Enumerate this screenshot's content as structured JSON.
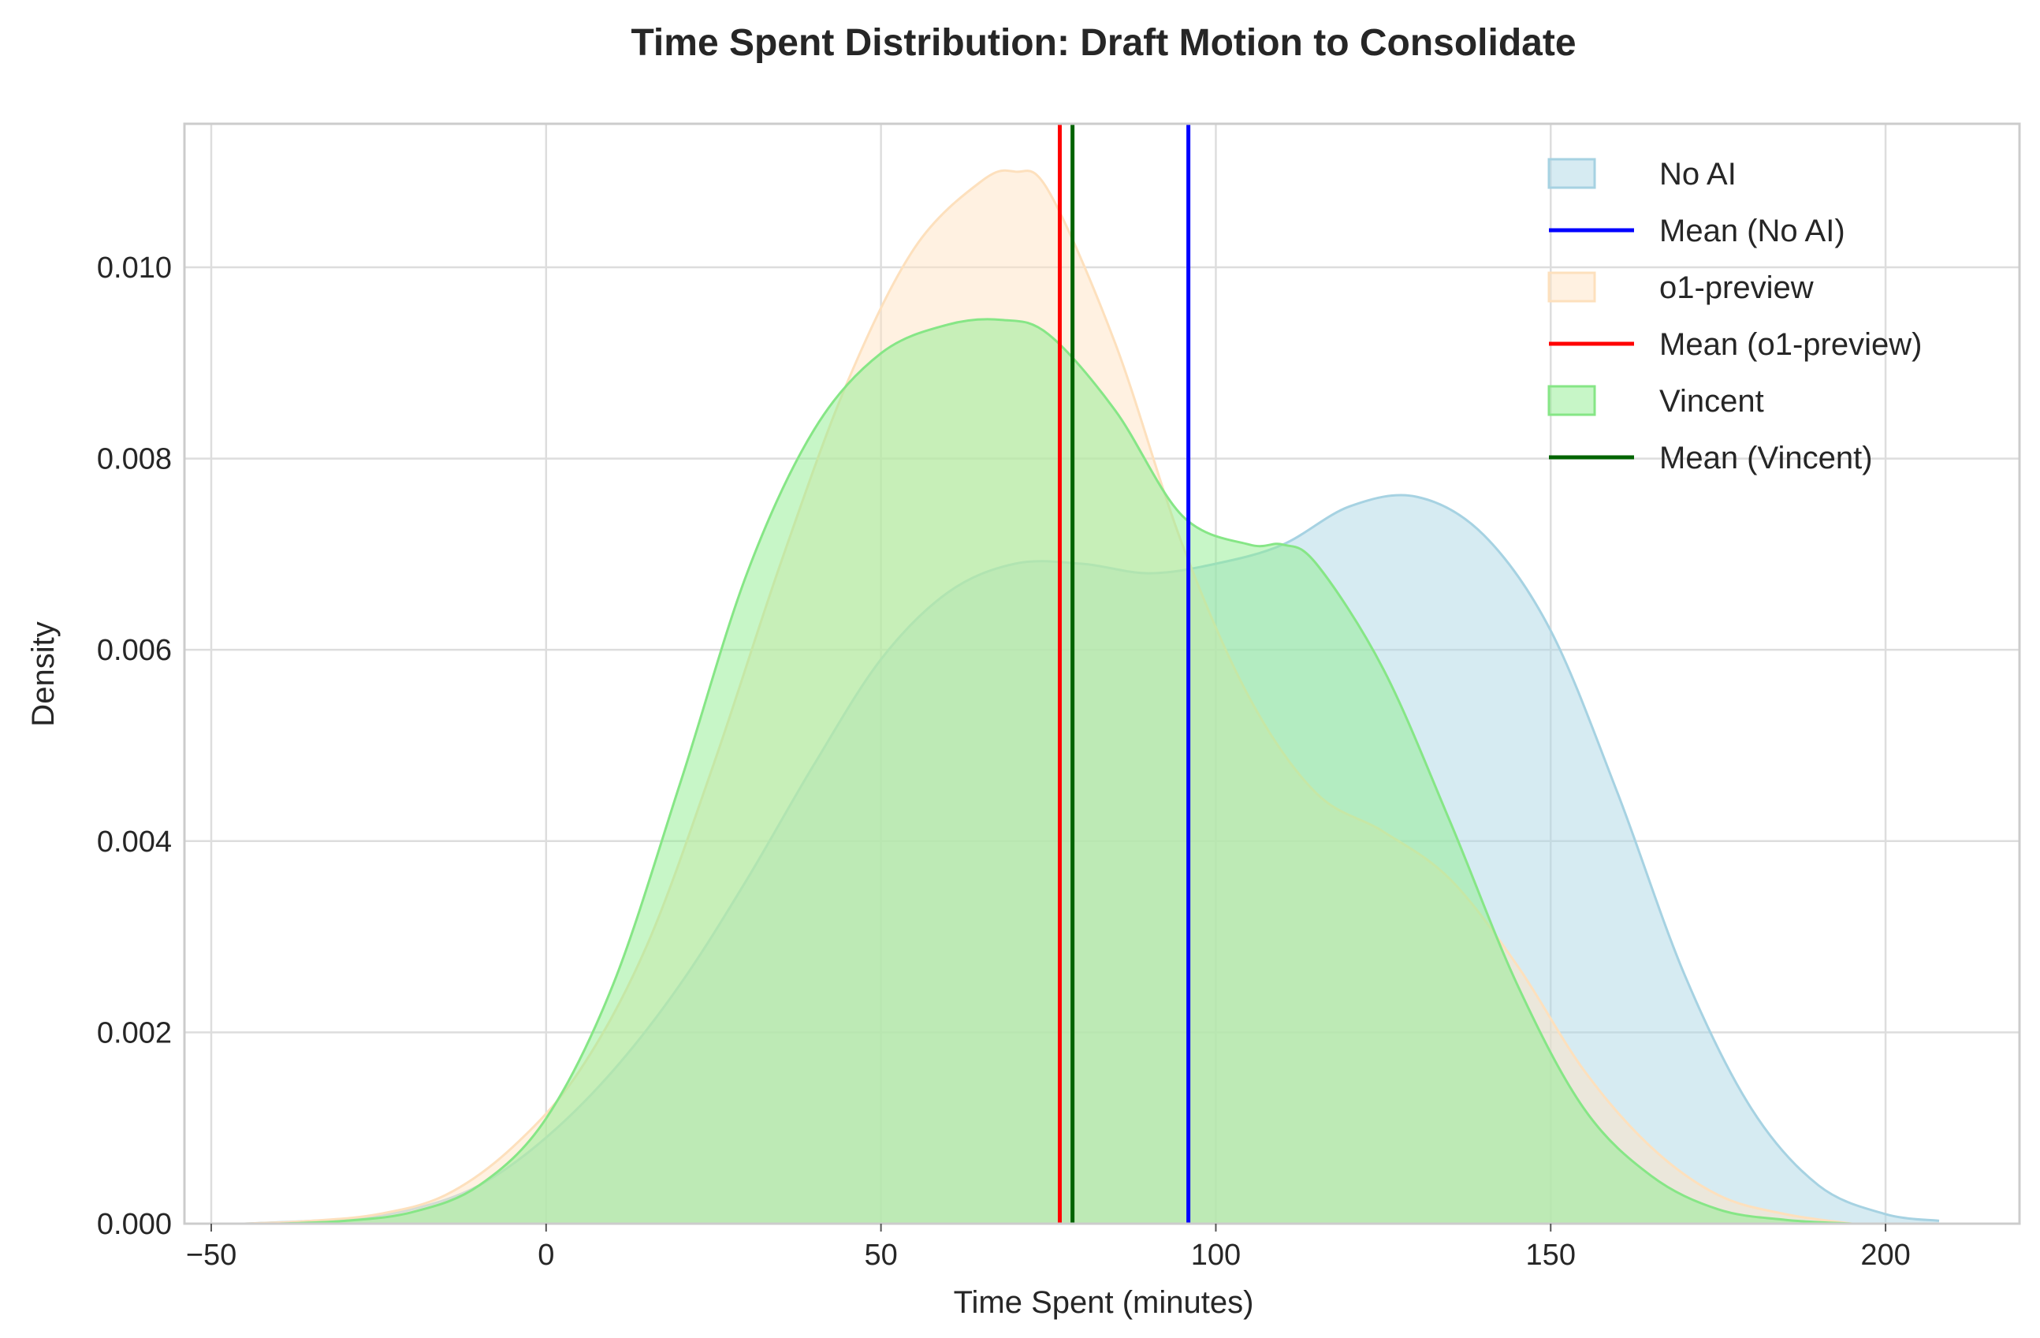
{
  "chart_data": {
    "type": "area",
    "title": "Time Spent Distribution: Draft Motion to Consolidate",
    "xlabel": "Time Spent (minutes)",
    "ylabel": "Density",
    "xlim": [
      -54,
      220
    ],
    "ylim": [
      0,
      0.0115
    ],
    "xticks": [
      -50,
      0,
      50,
      100,
      150,
      200
    ],
    "xtick_labels": [
      "−50",
      "0",
      "50",
      "100",
      "150",
      "200"
    ],
    "yticks": [
      0,
      0.002,
      0.004,
      0.006,
      0.008,
      0.01
    ],
    "ytick_labels": [
      "0.000",
      "0.002",
      "0.004",
      "0.006",
      "0.008",
      "0.010"
    ],
    "grid": true,
    "legend_position": "top-right",
    "series": [
      {
        "name": "No AI",
        "fill": "#add8e6",
        "edge": "#a6d2e2",
        "x": [
          -45,
          -30,
          -20,
          -10,
          0,
          10,
          20,
          30,
          40,
          50,
          60,
          70,
          80,
          90,
          100,
          110,
          120,
          130,
          140,
          150,
          160,
          170,
          180,
          190,
          200,
          208
        ],
        "y": [
          0.0,
          5e-05,
          0.00015,
          0.0004,
          0.0009,
          0.0016,
          0.0025,
          0.0036,
          0.0048,
          0.0059,
          0.0066,
          0.0069,
          0.0069,
          0.0068,
          0.0069,
          0.0071,
          0.0075,
          0.0076,
          0.0072,
          0.0062,
          0.0045,
          0.0026,
          0.0012,
          0.0004,
          0.0001,
          3e-05
        ],
        "mean": 95.9,
        "mean_label": "Mean (No AI)",
        "mean_color": "#0000ff"
      },
      {
        "name": "o1-preview",
        "fill": "#ffe4c4",
        "edge": "#fde0bd",
        "x": [
          -45,
          -35,
          -25,
          -15,
          -5,
          5,
          15,
          25,
          35,
          45,
          55,
          65,
          70,
          75,
          85,
          95,
          105,
          115,
          125,
          135,
          145,
          155,
          165,
          175,
          185,
          195
        ],
        "y": [
          0.0,
          3e-05,
          0.0001,
          0.0003,
          0.0008,
          0.0016,
          0.0029,
          0.0048,
          0.0069,
          0.0088,
          0.0102,
          0.0109,
          0.011,
          0.0108,
          0.0092,
          0.0071,
          0.0055,
          0.0045,
          0.0041,
          0.0036,
          0.0027,
          0.0016,
          0.0008,
          0.0003,
          0.0001,
          0.0
        ],
        "mean": 76.7,
        "mean_label": "Mean (o1-preview)",
        "mean_color": "#ff0000"
      },
      {
        "name": "Vincent",
        "fill": "#90ee90",
        "edge": "#86e686",
        "x": [
          -40,
          -30,
          -20,
          -10,
          0,
          10,
          20,
          30,
          40,
          50,
          60,
          68,
          75,
          85,
          95,
          105,
          110,
          115,
          125,
          135,
          145,
          155,
          165,
          175,
          185,
          195
        ],
        "y": [
          0.0,
          3e-05,
          0.00012,
          0.0004,
          0.0011,
          0.0025,
          0.0046,
          0.0068,
          0.0083,
          0.0091,
          0.0094,
          0.00945,
          0.0093,
          0.0085,
          0.0074,
          0.0071,
          0.0071,
          0.0069,
          0.0058,
          0.0042,
          0.0025,
          0.0012,
          0.0005,
          0.00015,
          4e-05,
          0.0
        ],
        "mean": 78.6,
        "mean_label": "Mean (Vincent)",
        "mean_color": "#006400"
      }
    ]
  }
}
